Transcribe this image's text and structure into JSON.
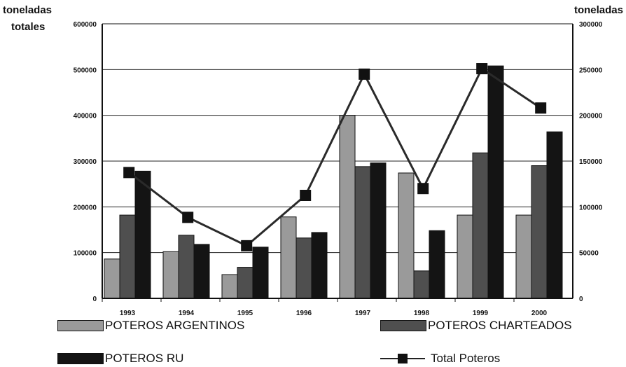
{
  "chart_data": {
    "type": "bar",
    "left_axis_label": [
      "toneladas",
      "totales"
    ],
    "right_axis_label": "toneladas",
    "categories": [
      "1993",
      "1994",
      "1995",
      "1996",
      "1997",
      "1998",
      "1999",
      "2000"
    ],
    "ylim_left": [
      0,
      600000
    ],
    "ylim_right": [
      0,
      300000
    ],
    "left_ticks": [
      "0",
      "100000",
      "200000",
      "300000",
      "400000",
      "500000",
      "600000"
    ],
    "right_ticks": [
      "0",
      "50000",
      "100000",
      "150000",
      "200000",
      "250000",
      "300000"
    ],
    "grid": true,
    "legend_position": "bottom",
    "series": [
      {
        "name": "POTEROS ARGENTINOS",
        "axis": "right",
        "color": "#9a9a9a",
        "values": [
          43000,
          51000,
          26000,
          89000,
          200000,
          137000,
          91000,
          91000
        ]
      },
      {
        "name": "POTEROS CHARTEADOS",
        "axis": "right",
        "color": "#4f4f4f",
        "values": [
          91000,
          69000,
          34000,
          66000,
          144000,
          30000,
          159000,
          145000
        ]
      },
      {
        "name": "POTEROS RU",
        "axis": "right",
        "color": "#141414",
        "values": [
          139000,
          59000,
          56000,
          72000,
          148000,
          74000,
          254000,
          182000
        ]
      },
      {
        "name": "Total Poteros",
        "axis": "left",
        "type": "line",
        "color": "#2a2a2a",
        "values": [
          275000,
          177000,
          115000,
          225000,
          490000,
          240000,
          502000,
          416000
        ]
      }
    ]
  }
}
